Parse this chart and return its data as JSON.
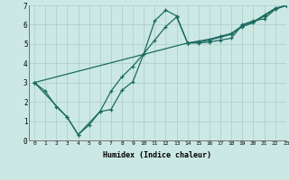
{
  "xlabel": "Humidex (Indice chaleur)",
  "xlim": [
    -0.5,
    23
  ],
  "ylim": [
    0,
    7
  ],
  "xticks": [
    0,
    1,
    2,
    3,
    4,
    5,
    6,
    7,
    8,
    9,
    10,
    11,
    12,
    13,
    14,
    15,
    16,
    17,
    18,
    19,
    20,
    21,
    22,
    23
  ],
  "yticks": [
    0,
    1,
    2,
    3,
    4,
    5,
    6,
    7
  ],
  "bg_color": "#cce8e4",
  "line_color": "#1a6b60",
  "line1_x": [
    0,
    1,
    2,
    3,
    4,
    5,
    6,
    7,
    8,
    9,
    10,
    11,
    12,
    13,
    14,
    15,
    16,
    17,
    18,
    19,
    20,
    21,
    22,
    23
  ],
  "line1_y": [
    3.0,
    2.55,
    1.75,
    1.2,
    0.3,
    0.8,
    1.5,
    1.6,
    2.6,
    3.05,
    4.5,
    6.2,
    6.75,
    6.45,
    5.05,
    5.05,
    5.1,
    5.2,
    5.3,
    6.0,
    6.2,
    6.3,
    6.8,
    7.0
  ],
  "line2_x": [
    0,
    3,
    4,
    6,
    7,
    8,
    9,
    10,
    11,
    12,
    13,
    14,
    15,
    16,
    17,
    18,
    19,
    20,
    21,
    22,
    23
  ],
  "line2_y": [
    3.0,
    1.2,
    0.3,
    1.5,
    2.55,
    3.3,
    3.85,
    4.5,
    5.2,
    5.9,
    6.4,
    5.05,
    5.1,
    5.2,
    5.35,
    5.5,
    5.9,
    6.1,
    6.45,
    6.8,
    7.0
  ],
  "line3_x": [
    0,
    14,
    15,
    16,
    17,
    18,
    19,
    20,
    21,
    22,
    23
  ],
  "line3_y": [
    3.0,
    5.05,
    5.15,
    5.25,
    5.4,
    5.55,
    5.95,
    6.15,
    6.5,
    6.85,
    7.0
  ]
}
